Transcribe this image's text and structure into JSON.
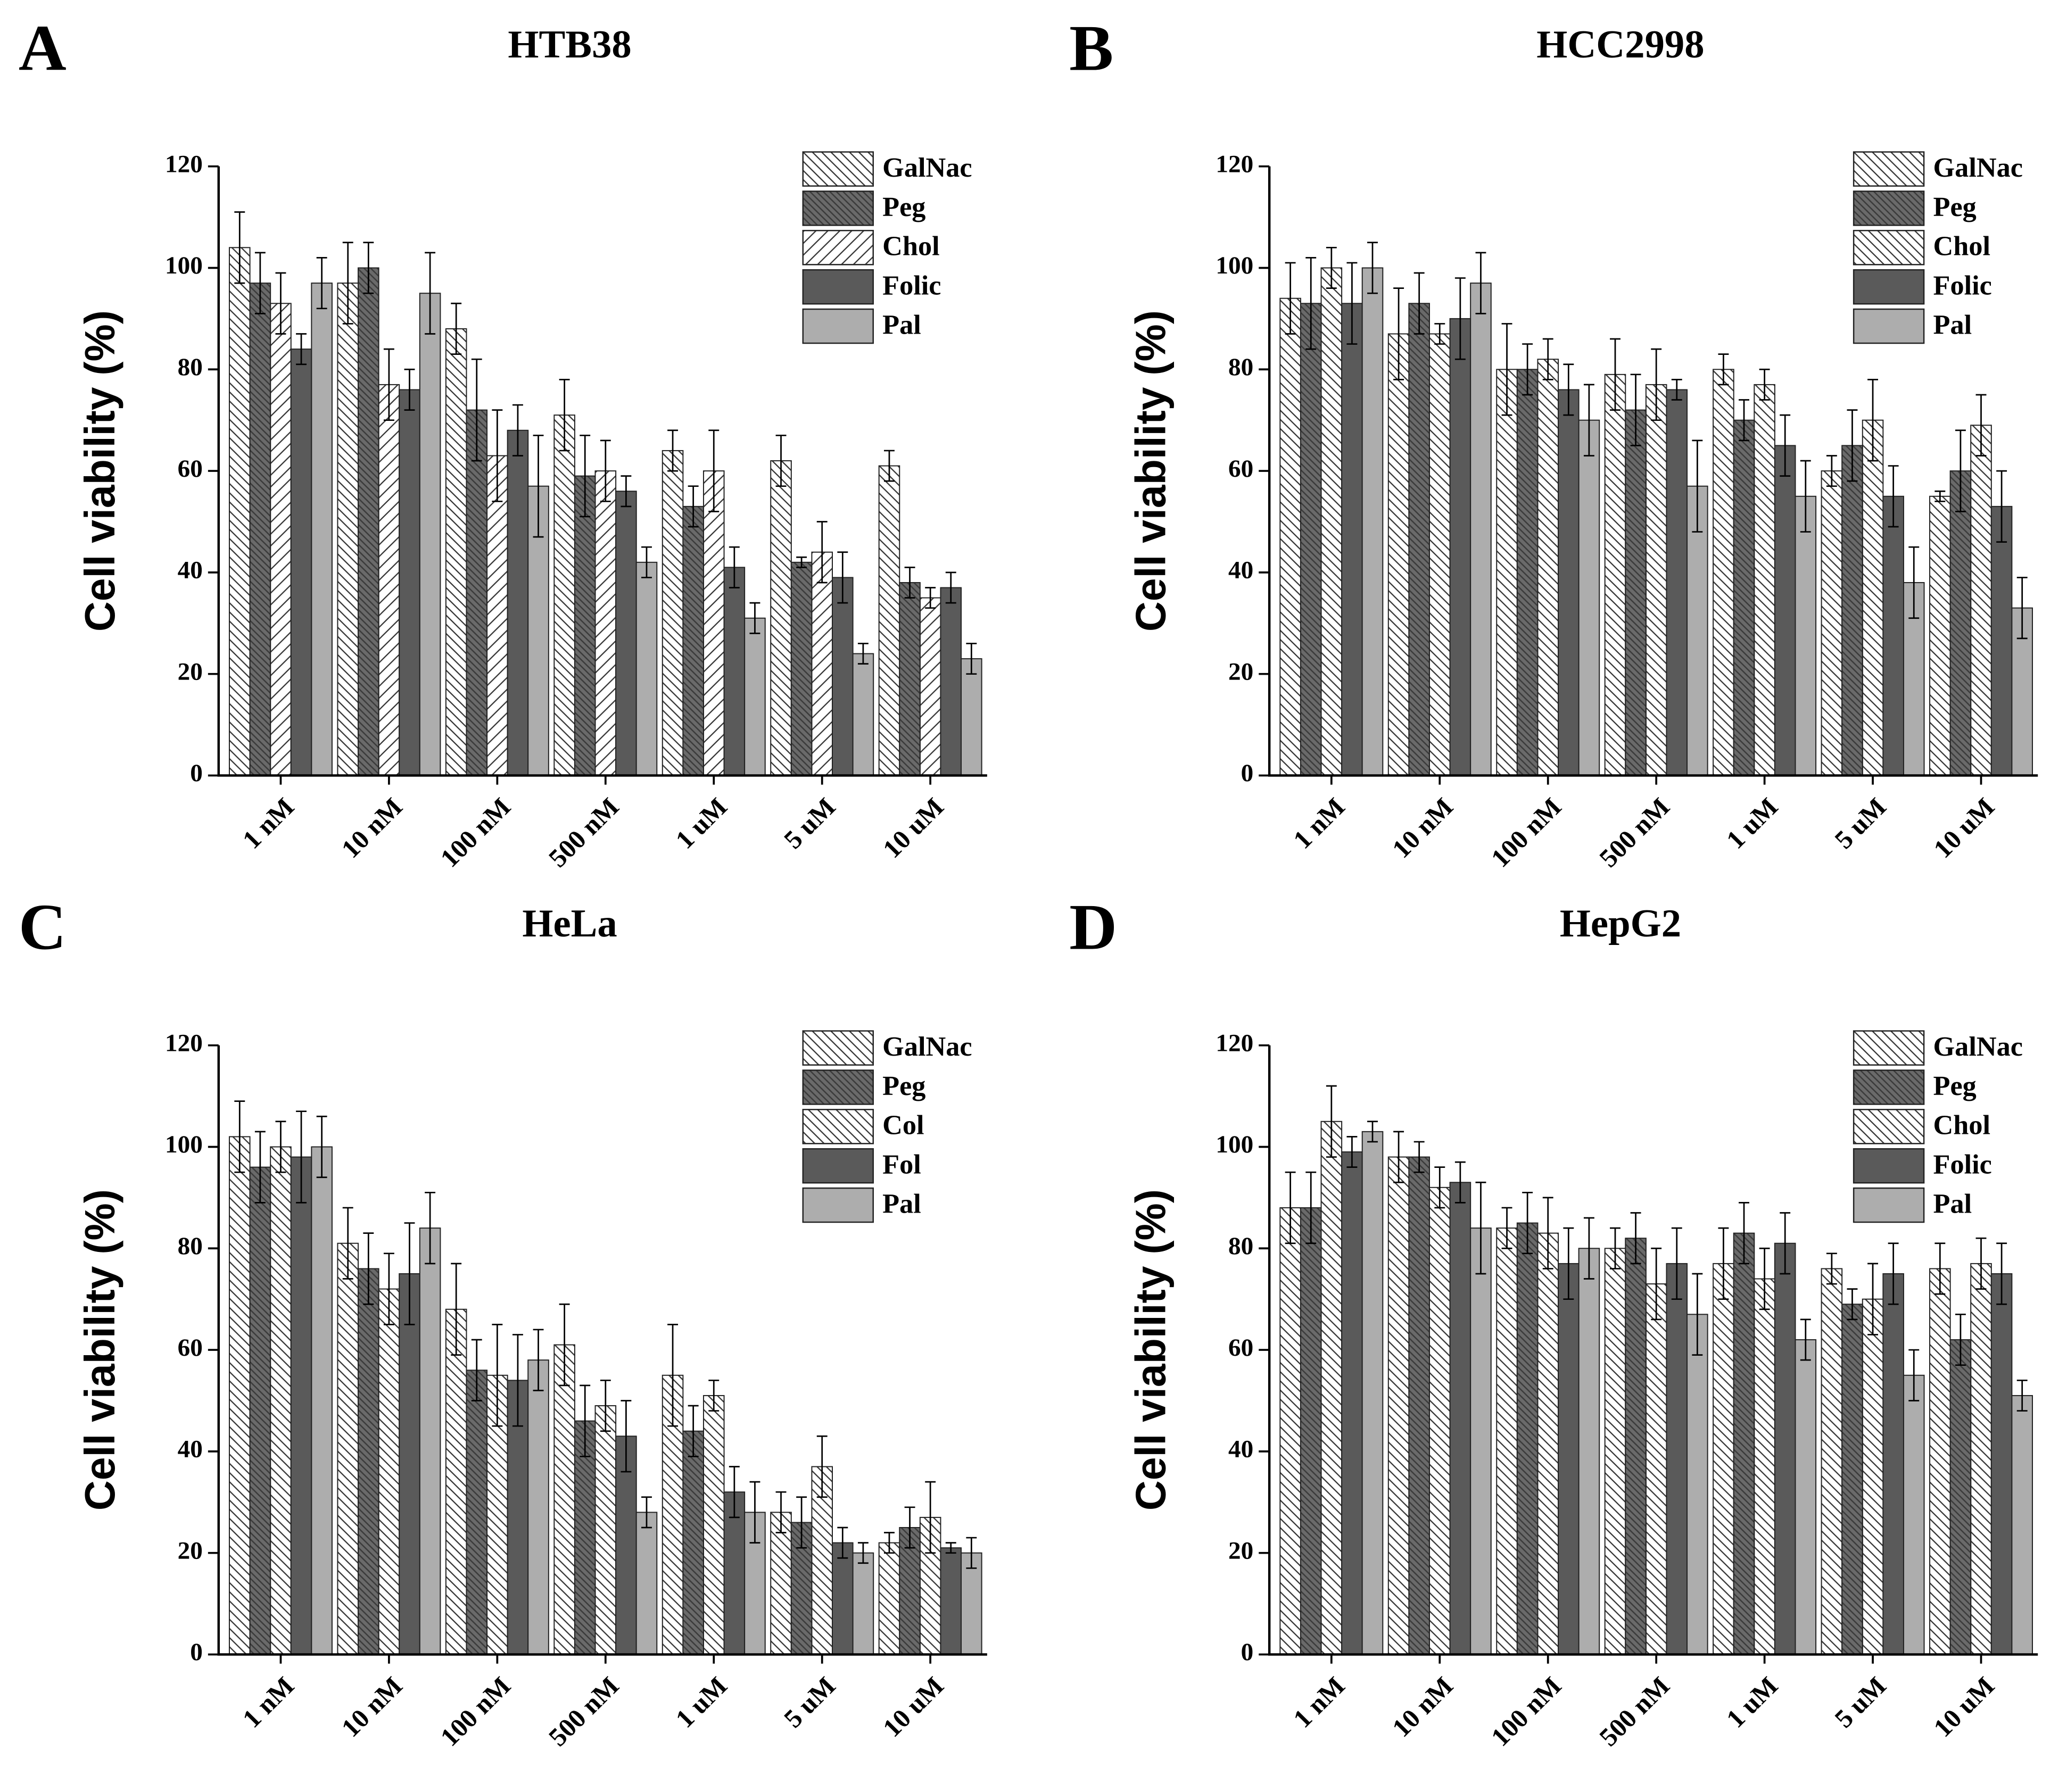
{
  "chart_data": [
    {
      "type": "bar",
      "panel": "A",
      "title": "HTB38",
      "y_label": "Cell viability (%)",
      "categories": [
        "1 nM",
        "10 nM",
        "100 nM",
        "500 nM",
        "1 uM",
        "5 uM",
        "10 uM"
      ],
      "ylim": [
        0,
        120
      ],
      "yticks": [
        0,
        20,
        40,
        60,
        80,
        100,
        120
      ],
      "series": [
        {
          "name": "GalNac",
          "color": "#ffffff",
          "hatch": "back",
          "values": [
            104,
            97,
            88,
            71,
            64,
            62,
            61
          ],
          "errors": [
            7,
            8,
            5,
            7,
            4,
            5,
            3
          ]
        },
        {
          "name": "Peg",
          "color": "#6a6a6a",
          "hatch": "dark",
          "values": [
            97,
            100,
            72,
            59,
            53,
            42,
            38
          ],
          "errors": [
            6,
            5,
            10,
            8,
            4,
            1,
            3
          ]
        },
        {
          "name": "Chol",
          "color": "#ffffff",
          "hatch": "forward",
          "values": [
            93,
            77,
            63,
            60,
            60,
            44,
            35
          ],
          "errors": [
            6,
            7,
            9,
            6,
            8,
            6,
            2
          ]
        },
        {
          "name": "Folic",
          "color": "#5a5a5a",
          "hatch": "none",
          "values": [
            84,
            76,
            68,
            56,
            41,
            39,
            37
          ],
          "errors": [
            3,
            4,
            5,
            3,
            4,
            5,
            3
          ]
        },
        {
          "name": "Pal",
          "color": "#adadad",
          "hatch": "none",
          "values": [
            97,
            95,
            57,
            42,
            31,
            24,
            23
          ],
          "errors": [
            5,
            8,
            10,
            3,
            3,
            2,
            3
          ]
        }
      ]
    },
    {
      "type": "bar",
      "panel": "B",
      "title": "HCC2998",
      "y_label": "Cell viability (%)",
      "categories": [
        "1 nM",
        "10 nM",
        "100 nM",
        "500 nM",
        "1 uM",
        "5 uM",
        "10 uM"
      ],
      "ylim": [
        0,
        120
      ],
      "yticks": [
        0,
        20,
        40,
        60,
        80,
        100,
        120
      ],
      "series": [
        {
          "name": "GalNac",
          "color": "#ffffff",
          "hatch": "back",
          "values": [
            94,
            87,
            80,
            79,
            80,
            60,
            55
          ],
          "errors": [
            7,
            9,
            9,
            7,
            3,
            3,
            1
          ]
        },
        {
          "name": "Peg",
          "color": "#6a6a6a",
          "hatch": "dark",
          "values": [
            93,
            93,
            80,
            72,
            70,
            65,
            60
          ],
          "errors": [
            9,
            6,
            5,
            7,
            4,
            7,
            8
          ]
        },
        {
          "name": "Chol",
          "color": "#ffffff",
          "hatch": "back",
          "values": [
            100,
            87,
            82,
            77,
            77,
            70,
            69
          ],
          "errors": [
            4,
            2,
            4,
            7,
            3,
            8,
            6
          ]
        },
        {
          "name": "Folic",
          "color": "#5a5a5a",
          "hatch": "none",
          "values": [
            93,
            90,
            76,
            76,
            65,
            55,
            53
          ],
          "errors": [
            8,
            8,
            5,
            2,
            6,
            6,
            7
          ]
        },
        {
          "name": "Pal",
          "color": "#adadad",
          "hatch": "none",
          "values": [
            100,
            97,
            70,
            57,
            55,
            38,
            33
          ],
          "errors": [
            5,
            6,
            7,
            9,
            7,
            7,
            6
          ]
        }
      ]
    },
    {
      "type": "bar",
      "panel": "C",
      "title": "HeLa",
      "y_label": "Cell viability (%)",
      "categories": [
        "1 nM",
        "10 nM",
        "100 nM",
        "500 nM",
        "1 uM",
        "5 uM",
        "10 uM"
      ],
      "ylim": [
        0,
        120
      ],
      "yticks": [
        0,
        20,
        40,
        60,
        80,
        100,
        120
      ],
      "series": [
        {
          "name": "GalNac",
          "color": "#ffffff",
          "hatch": "back",
          "values": [
            102,
            81,
            68,
            61,
            55,
            28,
            22
          ],
          "errors": [
            7,
            7,
            9,
            8,
            10,
            4,
            2
          ]
        },
        {
          "name": "Peg",
          "color": "#6a6a6a",
          "hatch": "dark",
          "values": [
            96,
            76,
            56,
            46,
            44,
            26,
            25
          ],
          "errors": [
            7,
            7,
            6,
            7,
            5,
            5,
            4
          ]
        },
        {
          "name": "Col",
          "color": "#ffffff",
          "hatch": "back",
          "values": [
            100,
            72,
            55,
            49,
            51,
            37,
            27
          ],
          "errors": [
            5,
            7,
            10,
            5,
            3,
            6,
            7
          ]
        },
        {
          "name": "Fol",
          "color": "#5a5a5a",
          "hatch": "none",
          "values": [
            98,
            75,
            54,
            43,
            32,
            22,
            21
          ],
          "errors": [
            9,
            10,
            9,
            7,
            5,
            3,
            1
          ]
        },
        {
          "name": "Pal",
          "color": "#adadad",
          "hatch": "none",
          "values": [
            100,
            84,
            58,
            28,
            28,
            20,
            20
          ],
          "errors": [
            6,
            7,
            6,
            3,
            6,
            2,
            3
          ]
        }
      ]
    },
    {
      "type": "bar",
      "panel": "D",
      "title": "HepG2",
      "y_label": "Cell viability (%)",
      "categories": [
        "1 nM",
        "10 nM",
        "100 nM",
        "500 nM",
        "1 uM",
        "5 uM",
        "10 uM"
      ],
      "ylim": [
        0,
        120
      ],
      "yticks": [
        0,
        20,
        40,
        60,
        80,
        100,
        120
      ],
      "series": [
        {
          "name": "GalNac",
          "color": "#ffffff",
          "hatch": "back",
          "values": [
            88,
            98,
            84,
            80,
            77,
            76,
            76
          ],
          "errors": [
            7,
            5,
            4,
            4,
            7,
            3,
            5
          ]
        },
        {
          "name": "Peg",
          "color": "#6a6a6a",
          "hatch": "dark",
          "values": [
            88,
            98,
            85,
            82,
            83,
            69,
            62
          ],
          "errors": [
            7,
            3,
            6,
            5,
            6,
            3,
            5
          ]
        },
        {
          "name": "Chol",
          "color": "#ffffff",
          "hatch": "back",
          "values": [
            105,
            92,
            83,
            73,
            74,
            70,
            77
          ],
          "errors": [
            7,
            4,
            7,
            7,
            6,
            7,
            5
          ]
        },
        {
          "name": "Folic",
          "color": "#5a5a5a",
          "hatch": "none",
          "values": [
            99,
            93,
            77,
            77,
            81,
            75,
            75
          ],
          "errors": [
            3,
            4,
            7,
            7,
            6,
            6,
            6
          ]
        },
        {
          "name": "Pal",
          "color": "#adadad",
          "hatch": "none",
          "values": [
            103,
            84,
            80,
            67,
            62,
            55,
            51
          ],
          "errors": [
            2,
            9,
            6,
            8,
            4,
            5,
            3
          ]
        }
      ]
    }
  ]
}
